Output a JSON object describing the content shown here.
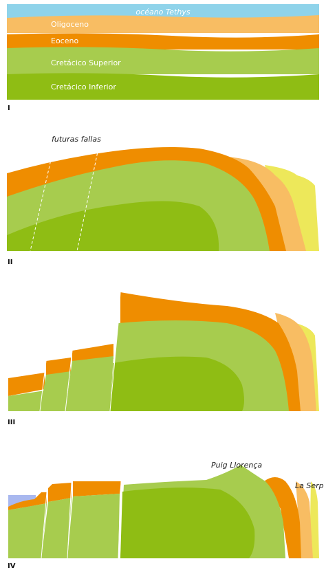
{
  "colors": {
    "ocean": "#8fd3ea",
    "oligoceno": "#f8bd63",
    "eoceno": "#ef8d00",
    "cretacico_superior": "#a7cc4e",
    "cretacico_inferior": "#8fbd14",
    "yellow": "#ede85a",
    "sea": "#a9b8ef"
  },
  "panel1": {
    "ocean_label": "océano Tethys",
    "layers": [
      "Oligoceno",
      "Eoceno",
      "Cretácico Superior",
      "Cretácico Inferior"
    ],
    "stage": "I"
  },
  "panel2": {
    "annotation": "futuras fallas",
    "stage": "II"
  },
  "panel3": {
    "stage": "III"
  },
  "panel4": {
    "peak1": "Puig Llorença",
    "peak2": "La Serp",
    "stage": "IV"
  }
}
